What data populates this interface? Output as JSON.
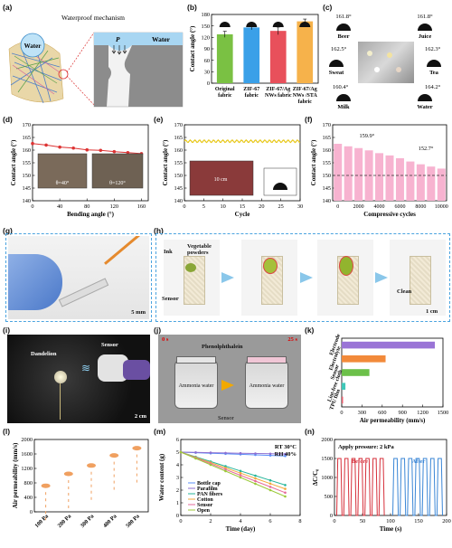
{
  "labels": {
    "a": "(a)",
    "b": "(b)",
    "c": "(c)",
    "d": "(d)",
    "e": "(e)",
    "f": "(f)",
    "g": "(g)",
    "h": "(h)",
    "i": "(i)",
    "j": "(j)",
    "k": "(k)",
    "l": "(l)",
    "m": "(m)",
    "n": "(n)"
  },
  "panel_a": {
    "title": "Waterproof mechanism",
    "water_drop": "Water",
    "p_label": "P",
    "water_label": "Water"
  },
  "panel_c": {
    "beer": "Beer",
    "juice": "Juice",
    "sweat": "Sweat",
    "tea": "Tea",
    "milk": "Milk",
    "water": "Water",
    "beer_angle": "161.8°",
    "juice_angle": "161.8°",
    "sweat_angle": "162.5°",
    "tea_angle": "162.3°",
    "milk_angle": "160.4°",
    "water_angle": "164.2°"
  },
  "panel_d_insets": {
    "left": "θ=40°",
    "right": "θ=120°"
  },
  "panel_e_scale": "10 cm",
  "panel_f_annot": {
    "first": "159.9°",
    "second": "152.7°"
  },
  "panel_g": {
    "scale": "5 mm"
  },
  "panel_h": {
    "ink": "Ink",
    "powders": "Vegetable powders",
    "sensor": "Sensor",
    "clean": "Clean",
    "scale": "1 cm"
  },
  "panel_i": {
    "dandelion": "Dandelion",
    "sensor": "Sensor",
    "scale": "2 cm"
  },
  "panel_j": {
    "t0": "0 s",
    "t1": "25 s",
    "indicator": "Phenolphthalein",
    "bottle": "Ammonia water",
    "bottom": "Sensor"
  },
  "panel_m": {
    "cond1": "RT  30°C",
    "cond2": "RH 40%"
  },
  "panel_n": {
    "pressure": "Apply pressure: 2 kPa",
    "before": "Before",
    "after": "After"
  },
  "colors": {
    "green": "#7ac143",
    "blue": "#3aa0e8",
    "red": "#e8505b",
    "orange": "#f6b24b",
    "pink": "#f7b3d0",
    "yellow": "#e8c81a"
  },
  "chart_data": [
    {
      "id": "b",
      "type": "bar",
      "categories": [
        "Original fabric",
        "ZIF-67 fabric",
        "ZIF-67/Ag NWs fabric",
        "ZIF-67/Ag NWs /STA fabric"
      ],
      "values": [
        128,
        146,
        137,
        162
      ],
      "errors": [
        8,
        6,
        10,
        6
      ],
      "ylabel": "Contact angle (°)",
      "ylim": [
        0,
        180
      ],
      "yticks": [
        0,
        30,
        60,
        90,
        120,
        150,
        180
      ]
    },
    {
      "id": "d",
      "type": "line",
      "x": [
        0,
        20,
        40,
        60,
        80,
        100,
        120,
        140,
        160
      ],
      "y": [
        162.6,
        162.0,
        161.2,
        160.8,
        160.1,
        159.9,
        159.4,
        159.0,
        158.6
      ],
      "xlabel": "Bending angle (°)",
      "ylabel": "Contact angle (°)",
      "xlim": [
        0,
        170
      ],
      "ylim": [
        140,
        170
      ],
      "xticks": [
        0,
        40,
        80,
        120,
        160
      ],
      "yticks": [
        140,
        145,
        150,
        155,
        160,
        165,
        170
      ]
    },
    {
      "id": "e",
      "type": "line",
      "xlabel": "Cycle",
      "ylabel": "Contact angle (°)",
      "xlim": [
        0,
        30
      ],
      "ylim": [
        140,
        170
      ],
      "xticks": [
        0,
        5,
        10,
        15,
        20,
        25,
        30
      ],
      "yticks": [
        140,
        145,
        150,
        155,
        160,
        165,
        170
      ],
      "series": [
        {
          "values_mean": 163.5
        }
      ]
    },
    {
      "id": "f",
      "type": "bar",
      "categories": [
        "0",
        "1000",
        "2000",
        "3000",
        "4000",
        "5000",
        "6000",
        "7000",
        "8000",
        "9000",
        "10000"
      ],
      "values": [
        162.5,
        161.5,
        160.8,
        159.9,
        158.8,
        157.9,
        156.8,
        155.5,
        154.4,
        153.5,
        152.7
      ],
      "xlabel": "Compressive cycles",
      "ylabel": "Contact angle (°)",
      "ylim": [
        140,
        170
      ],
      "yticks": [
        140,
        145,
        150,
        155,
        160,
        165,
        170
      ],
      "xticks": [
        0,
        2000,
        4000,
        6000,
        8000,
        10000
      ],
      "threshold": 150
    },
    {
      "id": "k",
      "type": "bar",
      "categories": [
        "Electrode",
        "Electrolyte",
        "Sensor",
        "Lint-free cloth",
        "TPU film"
      ],
      "values": [
        1380,
        650,
        410,
        55,
        20
      ],
      "xlabel": "Air permeability (mm/s)",
      "xlim": [
        0,
        1500
      ],
      "xticks": [
        0,
        300,
        600,
        900,
        1200,
        1500
      ]
    },
    {
      "id": "l",
      "type": "scatter",
      "categories": [
        "100 Pa",
        "200 Pa",
        "300 Pa",
        "400 Pa",
        "500 Pa"
      ],
      "values": [
        720,
        1050,
        1280,
        1560,
        1760
      ],
      "ylabel": "Air permeability (mm/s)",
      "ylim": [
        0,
        2000
      ],
      "yticks": [
        0,
        400,
        800,
        1200,
        1600,
        2000
      ]
    },
    {
      "id": "m",
      "type": "line",
      "xlabel": "Time (day)",
      "ylabel": "Water content (g)",
      "xlim": [
        0,
        8
      ],
      "ylim": [
        0,
        6
      ],
      "xticks": [
        0,
        2,
        4,
        6,
        8
      ],
      "yticks": [
        0,
        1,
        2,
        3,
        4,
        5,
        6
      ],
      "series": [
        {
          "name": "Bottle cap",
          "end": 4.7
        },
        {
          "name": "Parafilm",
          "end": 4.85
        },
        {
          "name": "PAN fibers",
          "end": 2.4
        },
        {
          "name": "Cotton",
          "end": 2.1
        },
        {
          "name": "Sensor",
          "end": 1.8
        },
        {
          "name": "Open",
          "end": 1.5
        }
      ]
    },
    {
      "id": "n",
      "type": "line",
      "xlabel": "Time (s)",
      "ylabel": "ΔC/C₀",
      "xlim": [
        0,
        200
      ],
      "ylim": [
        0,
        2000
      ],
      "xticks": [
        0,
        50,
        100,
        150,
        200
      ],
      "yticks": [
        0,
        500,
        1000,
        1500,
        2000
      ]
    }
  ]
}
